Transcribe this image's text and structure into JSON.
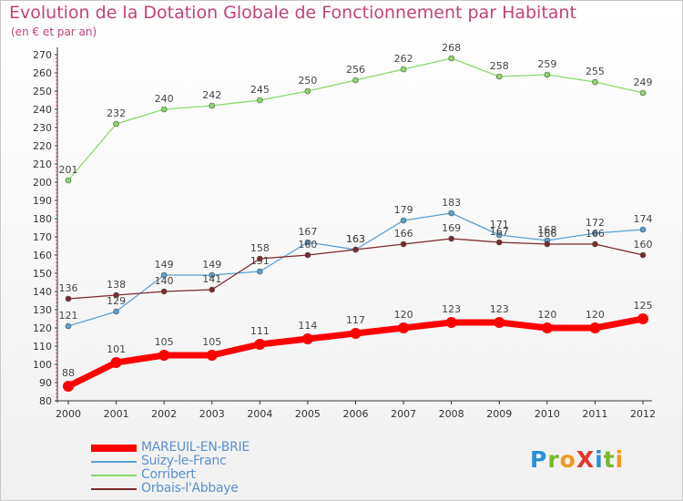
{
  "title": "Evolution de la Dotation Globale de Fonctionnement par Habitant",
  "subtitle": "(en € et par an)",
  "logo": {
    "text": "ProXiti",
    "letters": [
      {
        "ch": "P",
        "color": "#2a8fd6"
      },
      {
        "ch": "r",
        "color": "#7ab929"
      },
      {
        "ch": "o",
        "color": "#f29a1f"
      },
      {
        "ch": "X",
        "color": "#e5352d"
      },
      {
        "ch": "i",
        "color": "#2a8fd6"
      },
      {
        "ch": "t",
        "color": "#7ab929"
      },
      {
        "ch": "i",
        "color": "#f29a1f"
      }
    ]
  },
  "chart_data": {
    "type": "line",
    "title": "Evolution de la Dotation Globale de Fonctionnement par Habitant",
    "subtitle": "(en € et par an)",
    "x": [
      "2000",
      "2001",
      "2002",
      "2003",
      "2004",
      "2005",
      "2006",
      "2007",
      "2008",
      "2009",
      "2010",
      "2011",
      "2012"
    ],
    "ylim": [
      80,
      270
    ],
    "yticks": [
      80,
      90,
      100,
      110,
      120,
      130,
      140,
      150,
      160,
      170,
      180,
      190,
      200,
      210,
      220,
      230,
      240,
      250,
      260,
      270
    ],
    "grid": false,
    "legend_position": "bottom-left",
    "series": [
      {
        "name": "MAREUIL-EN-BRIE",
        "color": "#ff0000",
        "values": [
          88,
          101,
          105,
          105,
          111,
          114,
          117,
          120,
          123,
          123,
          120,
          120,
          125
        ]
      },
      {
        "name": "Suizy-le-Franc",
        "color": "#5ba0d0",
        "values": [
          121,
          129,
          149,
          149,
          151,
          167,
          163,
          179,
          183,
          171,
          168,
          172,
          174
        ]
      },
      {
        "name": "Corribert",
        "color": "#88d96a",
        "values": [
          201,
          232,
          240,
          242,
          245,
          250,
          256,
          262,
          268,
          258,
          259,
          255,
          249
        ]
      },
      {
        "name": "Orbais-l'Abbaye",
        "color": "#7a2a2a",
        "values": [
          136,
          138,
          140,
          141,
          158,
          160,
          163,
          166,
          169,
          167,
          166,
          166,
          160
        ]
      }
    ]
  }
}
